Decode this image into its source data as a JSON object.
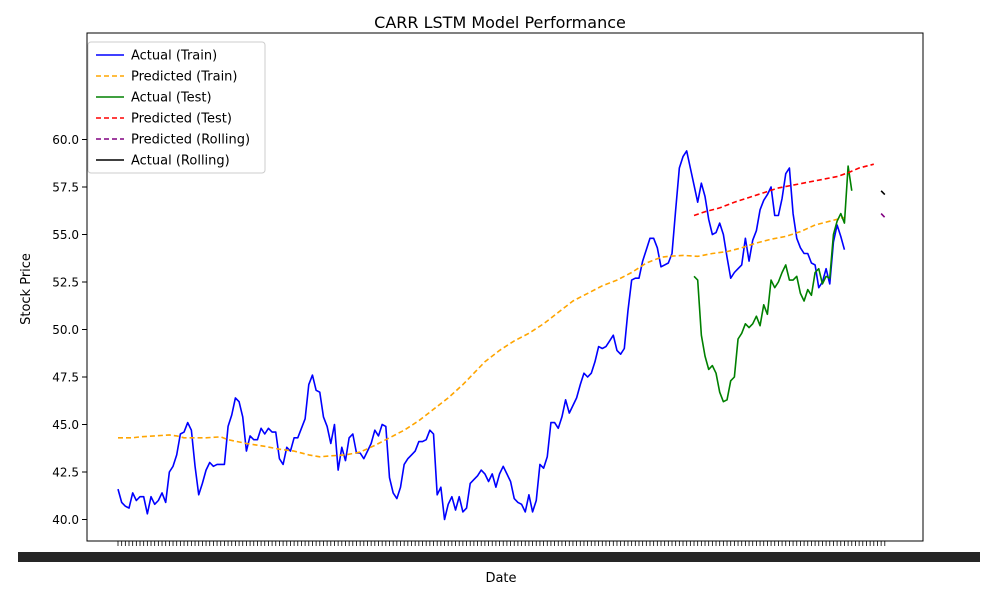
{
  "chart_data": {
    "type": "line",
    "title": "CARR LSTM Model Performance",
    "xlabel": "Date",
    "ylabel": "Stock Price",
    "ylim": [
      39.1,
      60.4
    ],
    "x_index_range": [
      0,
      200
    ],
    "x_tick_labels_note": "crowded, overlapping and illegible date tick labels",
    "yticks": [
      40.0,
      42.5,
      45.0,
      47.5,
      50.0,
      52.5,
      55.0,
      57.5,
      60.0
    ],
    "ytick_labels": [
      "40.0",
      "42.5",
      "45.0",
      "47.5",
      "50.0",
      "52.5",
      "55.0",
      "57.5",
      "60.0"
    ],
    "grid": false,
    "legend_position": "top-left",
    "series": [
      {
        "name": "Actual (Train)",
        "color": "#0000ff",
        "style": "solid",
        "points": [
          [
            0,
            41.6
          ],
          [
            1,
            40.9
          ],
          [
            2,
            40.7
          ],
          [
            3,
            40.6
          ],
          [
            4,
            41.4
          ],
          [
            5,
            41.0
          ],
          [
            6,
            41.2
          ],
          [
            7,
            41.2
          ],
          [
            8,
            40.3
          ],
          [
            9,
            41.2
          ],
          [
            10,
            40.8
          ],
          [
            11,
            41.0
          ],
          [
            12,
            41.4
          ],
          [
            13,
            40.9
          ],
          [
            14,
            42.5
          ],
          [
            15,
            42.8
          ],
          [
            16,
            43.4
          ],
          [
            17,
            44.5
          ],
          [
            18,
            44.6
          ],
          [
            19,
            45.1
          ],
          [
            20,
            44.7
          ],
          [
            21,
            42.8
          ],
          [
            22,
            41.3
          ],
          [
            23,
            41.9
          ],
          [
            24,
            42.6
          ],
          [
            25,
            43.0
          ],
          [
            26,
            42.8
          ],
          [
            27,
            42.9
          ],
          [
            28,
            42.9
          ],
          [
            29,
            42.9
          ],
          [
            30,
            44.9
          ],
          [
            31,
            45.5
          ],
          [
            32,
            46.4
          ],
          [
            33,
            46.2
          ],
          [
            34,
            45.4
          ],
          [
            35,
            43.6
          ],
          [
            36,
            44.4
          ],
          [
            37,
            44.2
          ],
          [
            38,
            44.2
          ],
          [
            39,
            44.8
          ],
          [
            40,
            44.5
          ],
          [
            41,
            44.8
          ],
          [
            42,
            44.6
          ],
          [
            43,
            44.6
          ],
          [
            44,
            43.2
          ],
          [
            45,
            42.9
          ],
          [
            46,
            43.8
          ],
          [
            47,
            43.6
          ],
          [
            48,
            44.3
          ],
          [
            49,
            44.3
          ],
          [
            50,
            44.8
          ],
          [
            51,
            45.3
          ],
          [
            52,
            47.1
          ],
          [
            53,
            47.6
          ],
          [
            54,
            46.8
          ],
          [
            55,
            46.7
          ],
          [
            56,
            45.4
          ],
          [
            57,
            44.9
          ],
          [
            58,
            44.0
          ],
          [
            59,
            45.0
          ],
          [
            60,
            42.6
          ],
          [
            61,
            43.8
          ],
          [
            62,
            43.1
          ],
          [
            63,
            44.3
          ],
          [
            64,
            44.5
          ],
          [
            65,
            43.5
          ],
          [
            66,
            43.5
          ],
          [
            67,
            43.2
          ],
          [
            68,
            43.6
          ],
          [
            69,
            44.0
          ],
          [
            70,
            44.7
          ],
          [
            71,
            44.4
          ],
          [
            72,
            45.0
          ],
          [
            73,
            44.9
          ],
          [
            74,
            42.2
          ],
          [
            75,
            41.4
          ],
          [
            76,
            41.1
          ],
          [
            77,
            41.7
          ],
          [
            78,
            42.9
          ],
          [
            79,
            43.2
          ],
          [
            80,
            43.4
          ],
          [
            81,
            43.6
          ],
          [
            82,
            44.1
          ],
          [
            83,
            44.1
          ],
          [
            84,
            44.2
          ],
          [
            85,
            44.7
          ],
          [
            86,
            44.5
          ],
          [
            87,
            41.3
          ],
          [
            88,
            41.7
          ],
          [
            89,
            40.0
          ],
          [
            90,
            40.8
          ],
          [
            91,
            41.2
          ],
          [
            92,
            40.5
          ],
          [
            93,
            41.2
          ],
          [
            94,
            40.4
          ],
          [
            95,
            40.6
          ],
          [
            96,
            41.9
          ],
          [
            97,
            42.1
          ],
          [
            98,
            42.3
          ],
          [
            99,
            42.6
          ],
          [
            100,
            42.4
          ],
          [
            101,
            42.0
          ],
          [
            102,
            42.4
          ],
          [
            103,
            41.7
          ],
          [
            104,
            42.4
          ],
          [
            105,
            42.8
          ],
          [
            106,
            42.4
          ],
          [
            107,
            42.0
          ],
          [
            108,
            41.1
          ],
          [
            109,
            40.9
          ],
          [
            110,
            40.8
          ],
          [
            111,
            40.4
          ],
          [
            112,
            41.3
          ],
          [
            113,
            40.4
          ],
          [
            114,
            41.0
          ],
          [
            115,
            42.9
          ],
          [
            116,
            42.7
          ],
          [
            117,
            43.3
          ],
          [
            118,
            45.1
          ],
          [
            119,
            45.1
          ],
          [
            120,
            44.8
          ],
          [
            121,
            45.4
          ],
          [
            122,
            46.3
          ],
          [
            123,
            45.6
          ],
          [
            124,
            46.0
          ],
          [
            125,
            46.4
          ],
          [
            126,
            47.1
          ],
          [
            127,
            47.7
          ],
          [
            128,
            47.5
          ],
          [
            129,
            47.7
          ],
          [
            130,
            48.3
          ],
          [
            131,
            49.1
          ],
          [
            132,
            49.0
          ],
          [
            133,
            49.1
          ],
          [
            134,
            49.4
          ],
          [
            135,
            49.7
          ],
          [
            136,
            48.9
          ],
          [
            137,
            48.7
          ],
          [
            138,
            49.0
          ],
          [
            139,
            51.0
          ],
          [
            140,
            52.6
          ],
          [
            141,
            52.7
          ],
          [
            142,
            52.7
          ],
          [
            143,
            53.6
          ],
          [
            144,
            54.2
          ],
          [
            145,
            54.8
          ],
          [
            146,
            54.8
          ],
          [
            147,
            54.3
          ],
          [
            148,
            53.3
          ],
          [
            149,
            53.4
          ],
          [
            150,
            53.5
          ],
          [
            151,
            54.0
          ],
          [
            152,
            56.3
          ],
          [
            153,
            58.5
          ],
          [
            154,
            59.1
          ],
          [
            155,
            59.4
          ],
          [
            156,
            58.5
          ],
          [
            157,
            57.6
          ],
          [
            158,
            56.7
          ],
          [
            159,
            57.7
          ],
          [
            160,
            57.0
          ],
          [
            161,
            55.8
          ],
          [
            162,
            55.0
          ],
          [
            163,
            55.1
          ],
          [
            164,
            55.6
          ],
          [
            165,
            55.0
          ],
          [
            166,
            53.8
          ],
          [
            167,
            52.7
          ],
          [
            168,
            53.0
          ],
          [
            169,
            53.2
          ],
          [
            170,
            53.4
          ],
          [
            171,
            54.8
          ],
          [
            172,
            53.6
          ],
          [
            173,
            54.7
          ],
          [
            174,
            55.2
          ],
          [
            175,
            56.3
          ],
          [
            176,
            56.8
          ],
          [
            177,
            57.1
          ],
          [
            178,
            57.5
          ],
          [
            179,
            56.0
          ],
          [
            180,
            56.0
          ],
          [
            181,
            56.9
          ],
          [
            182,
            58.2
          ],
          [
            183,
            58.5
          ],
          [
            184,
            56.1
          ],
          [
            185,
            54.8
          ],
          [
            186,
            54.3
          ],
          [
            187,
            54.0
          ],
          [
            188,
            54.0
          ],
          [
            189,
            53.5
          ],
          [
            190,
            53.4
          ],
          [
            191,
            52.2
          ],
          [
            192,
            52.5
          ],
          [
            193,
            53.2
          ],
          [
            194,
            52.4
          ],
          [
            195,
            54.6
          ],
          [
            196,
            55.5
          ],
          [
            197,
            54.9
          ],
          [
            198,
            54.2
          ]
        ]
      },
      {
        "name": "Predicted (Train)",
        "color": "#ffa500",
        "style": "dashed",
        "points": [
          [
            0,
            44.3
          ],
          [
            4,
            44.3
          ],
          [
            6,
            44.35
          ],
          [
            10,
            44.4
          ],
          [
            14,
            44.45
          ],
          [
            16,
            44.4
          ],
          [
            18,
            44.3
          ],
          [
            24,
            44.3
          ],
          [
            28,
            44.35
          ],
          [
            30,
            44.2
          ],
          [
            35,
            44.0
          ],
          [
            40,
            43.85
          ],
          [
            44,
            43.7
          ],
          [
            48,
            43.6
          ],
          [
            52,
            43.4
          ],
          [
            55,
            43.3
          ],
          [
            58,
            43.35
          ],
          [
            62,
            43.4
          ],
          [
            66,
            43.55
          ],
          [
            70,
            43.9
          ],
          [
            74,
            44.3
          ],
          [
            78,
            44.7
          ],
          [
            82,
            45.2
          ],
          [
            86,
            45.8
          ],
          [
            90,
            46.4
          ],
          [
            94,
            47.1
          ],
          [
            97,
            47.7
          ],
          [
            100,
            48.3
          ],
          [
            104,
            48.9
          ],
          [
            108,
            49.4
          ],
          [
            112,
            49.8
          ],
          [
            116,
            50.3
          ],
          [
            120,
            50.9
          ],
          [
            124,
            51.5
          ],
          [
            128,
            51.9
          ],
          [
            132,
            52.3
          ],
          [
            136,
            52.6
          ],
          [
            140,
            53.0
          ],
          [
            144,
            53.5
          ],
          [
            148,
            53.8
          ],
          [
            150,
            53.85
          ],
          [
            154,
            53.9
          ],
          [
            158,
            53.85
          ],
          [
            162,
            54.0
          ],
          [
            166,
            54.1
          ],
          [
            170,
            54.3
          ],
          [
            174,
            54.55
          ],
          [
            178,
            54.75
          ],
          [
            182,
            54.9
          ],
          [
            186,
            55.15
          ],
          [
            190,
            55.5
          ],
          [
            194,
            55.7
          ],
          [
            198,
            55.9
          ]
        ]
      },
      {
        "name": "Actual (Test)",
        "color": "#008000",
        "style": "solid",
        "points": [
          [
            157,
            52.8
          ],
          [
            158,
            52.6
          ],
          [
            159,
            49.7
          ],
          [
            160,
            48.6
          ],
          [
            161,
            47.9
          ],
          [
            162,
            48.1
          ],
          [
            163,
            47.7
          ],
          [
            164,
            46.7
          ],
          [
            165,
            46.2
          ],
          [
            166,
            46.3
          ],
          [
            167,
            47.3
          ],
          [
            168,
            47.5
          ],
          [
            169,
            49.5
          ],
          [
            170,
            49.8
          ],
          [
            171,
            50.3
          ],
          [
            172,
            50.1
          ],
          [
            173,
            50.3
          ],
          [
            174,
            50.7
          ],
          [
            175,
            50.2
          ],
          [
            176,
            51.3
          ],
          [
            177,
            50.8
          ],
          [
            178,
            52.6
          ],
          [
            179,
            52.2
          ],
          [
            180,
            52.5
          ],
          [
            181,
            53.0
          ],
          [
            182,
            53.4
          ],
          [
            183,
            52.6
          ],
          [
            184,
            52.6
          ],
          [
            185,
            52.8
          ],
          [
            186,
            51.9
          ],
          [
            187,
            51.5
          ],
          [
            188,
            52.1
          ],
          [
            189,
            51.8
          ],
          [
            190,
            53.0
          ],
          [
            191,
            53.2
          ],
          [
            192,
            52.4
          ],
          [
            193,
            52.8
          ],
          [
            194,
            52.7
          ],
          [
            195,
            55.0
          ],
          [
            196,
            55.7
          ],
          [
            197,
            56.1
          ],
          [
            198,
            55.6
          ],
          [
            199,
            58.6
          ],
          [
            200,
            57.3
          ]
        ]
      },
      {
        "name": "Predicted (Test)",
        "color": "#ff0000",
        "style": "dashed",
        "points": [
          [
            157,
            56.0
          ],
          [
            160,
            56.2
          ],
          [
            164,
            56.4
          ],
          [
            168,
            56.7
          ],
          [
            172,
            56.95
          ],
          [
            176,
            57.2
          ],
          [
            180,
            57.45
          ],
          [
            184,
            57.6
          ],
          [
            188,
            57.75
          ],
          [
            192,
            57.9
          ],
          [
            196,
            58.05
          ],
          [
            199,
            58.25
          ],
          [
            202,
            58.5
          ],
          [
            206,
            58.7
          ]
        ]
      },
      {
        "name": "Predicted (Rolling)",
        "color": "#800080",
        "style": "dashed",
        "points": [
          [
            208,
            56.1
          ],
          [
            209,
            55.9
          ]
        ]
      },
      {
        "name": "Actual (Rolling)",
        "color": "#000000",
        "style": "solid",
        "points": [
          [
            208,
            57.3
          ],
          [
            209,
            57.1
          ]
        ]
      }
    ]
  }
}
